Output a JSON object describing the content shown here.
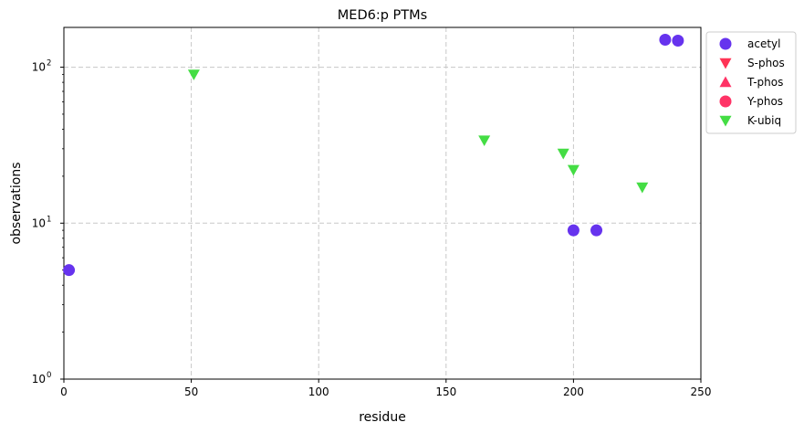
{
  "chart_data": {
    "type": "scatter",
    "title": "MED6:p PTMs",
    "xlabel": "residue",
    "ylabel": "observations",
    "xlim": [
      0,
      250
    ],
    "ylim": [
      1,
      180
    ],
    "yscale": "log",
    "x_ticks": [
      "0",
      "50",
      "100",
      "150",
      "200",
      "250"
    ],
    "y_ticks": [
      {
        "value": 1,
        "base": "10",
        "exp": "0"
      },
      {
        "value": 10,
        "base": "10",
        "exp": "1"
      },
      {
        "value": 100,
        "base": "10",
        "exp": "2"
      }
    ],
    "grid": true,
    "legend_position": "outside-top-right",
    "series": [
      {
        "name": "acetyl",
        "marker": "circle",
        "color": "#6633ee",
        "points": [
          [
            2,
            5
          ],
          [
            200,
            9
          ],
          [
            209,
            9
          ],
          [
            236,
            150
          ],
          [
            241,
            148
          ]
        ]
      },
      {
        "name": "S-phos",
        "marker": "triangle-down",
        "color": "#ff3355",
        "points": []
      },
      {
        "name": "T-phos",
        "marker": "triangle-up",
        "color": "#ff3366",
        "points": []
      },
      {
        "name": "Y-phos",
        "marker": "circle",
        "color": "#ff3366",
        "points": []
      },
      {
        "name": "K-ubiq",
        "marker": "triangle-down",
        "color": "#44dd44",
        "points": [
          [
            51,
            90
          ],
          [
            165,
            34
          ],
          [
            196,
            28
          ],
          [
            200,
            22
          ],
          [
            227,
            17
          ]
        ]
      }
    ]
  }
}
